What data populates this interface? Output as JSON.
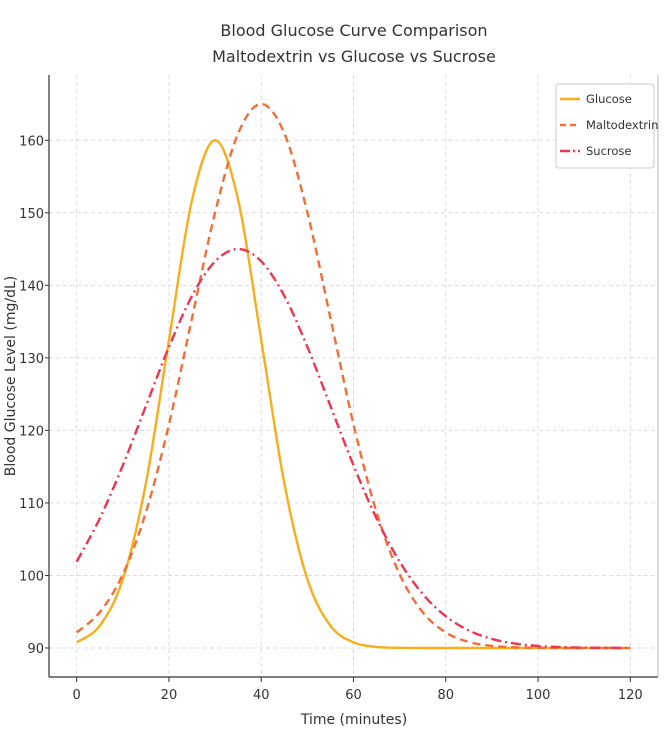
{
  "chart_data": {
    "type": "line",
    "title": "Blood Glucose Curve Comparison",
    "subtitle": "Maltodextrin vs Glucose vs Sucrose",
    "xlabel": "Time (minutes)",
    "ylabel": "Blood Glucose Level (mg/dL)",
    "xlim": [
      -6,
      126
    ],
    "ylim": [
      86,
      169
    ],
    "xticks": [
      0,
      20,
      40,
      60,
      80,
      100,
      120
    ],
    "yticks": [
      90,
      100,
      110,
      120,
      130,
      140,
      150,
      160
    ],
    "grid": true,
    "legend_position": "top-right",
    "x": [
      0,
      5,
      10,
      15,
      20,
      25,
      30,
      35,
      40,
      45,
      50,
      55,
      60,
      65,
      70,
      75,
      80,
      85,
      90,
      95,
      100,
      105,
      110,
      115,
      120
    ],
    "series": [
      {
        "name": "Glucose",
        "color": "#f8ae1c",
        "style": "solid",
        "values": [
          90.78,
          93.07,
          99.47,
          112.73,
          132.46,
          151.77,
          160,
          151.77,
          132.46,
          112.73,
          99.47,
          93.07,
          90.78,
          90.15,
          90.02,
          90,
          90,
          90,
          90,
          90,
          90,
          90,
          90,
          90,
          90
        ]
      },
      {
        "name": "Maltodextrin",
        "color": "#f26d37",
        "style": "dashed",
        "values": [
          92.14,
          94.93,
          100.15,
          108.7,
          120.83,
          135.49,
          150.05,
          160.95,
          165,
          160.95,
          150.05,
          135.49,
          120.83,
          108.7,
          100.15,
          94.93,
          92.14,
          90.83,
          90.29,
          90.09,
          90.03,
          90,
          90,
          90,
          90
        ]
      },
      {
        "name": "Sucrose",
        "color": "#ef3552",
        "style": "dashdot",
        "values": [
          101.9,
          107.86,
          115.18,
          123.36,
          131.51,
          138.54,
          143.31,
          145,
          143.31,
          138.54,
          131.51,
          123.36,
          115.18,
          107.86,
          101.9,
          97.44,
          94.38,
          92.41,
          91.25,
          90.61,
          90.28,
          90.12,
          90.05,
          90.02,
          90.01
        ]
      }
    ]
  }
}
